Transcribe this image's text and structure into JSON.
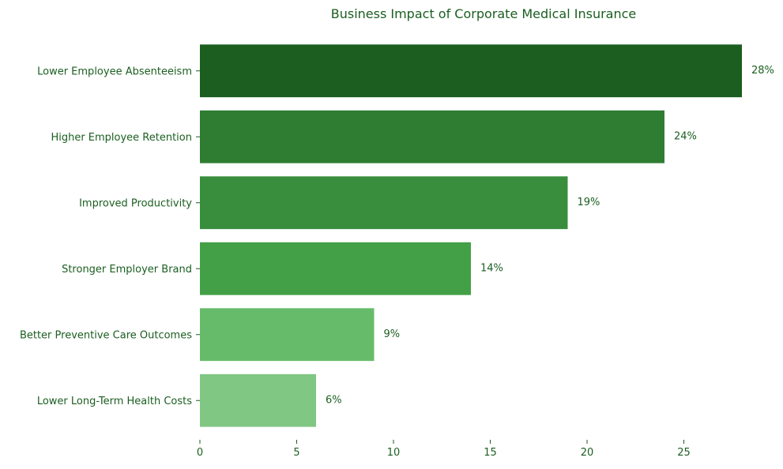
{
  "chart_data": {
    "type": "bar",
    "orientation": "horizontal",
    "title": "Business Impact of Corporate Medical Insurance",
    "xlabel": "",
    "ylabel": "",
    "categories": [
      "Lower Employee Absenteeism",
      "Higher Employee Retention",
      "Improved Productivity",
      "Stronger Employer Brand",
      "Better Preventive Care Outcomes",
      "Lower Long-Term Health Costs"
    ],
    "values": [
      28,
      24,
      19,
      14,
      9,
      6
    ],
    "data_labels": [
      "28%",
      "24%",
      "19%",
      "14%",
      "9%",
      "6%"
    ],
    "bar_colors": [
      "#1b5e20",
      "#2e7d32",
      "#388e3c",
      "#43a047",
      "#66bb6a",
      "#81c784"
    ],
    "x_ticks": [
      0,
      5,
      10,
      15,
      20,
      25
    ],
    "xlim": [
      0,
      28
    ],
    "grid": false,
    "legend": "none",
    "text_color": "#1b5e20"
  }
}
